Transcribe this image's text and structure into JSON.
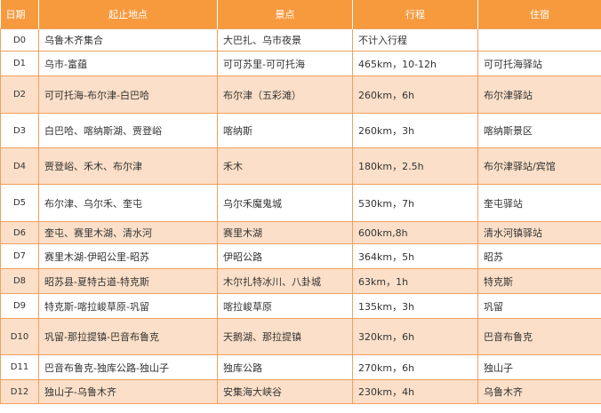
{
  "header": [
    "日期",
    "起止地点",
    "景点",
    "行程",
    "住宿"
  ],
  "rows": [
    {
      "day": "D0",
      "route": "乌鲁木齐集合",
      "sight": "大巴扎、乌市夜景",
      "distance": "不计入行程",
      "stay": ""
    },
    {
      "day": "D1",
      "route": "乌市-富蕴",
      "sight": "可可苏里-可可托海",
      "distance": "465km，10-12h",
      "stay": "可可托海驿站"
    },
    {
      "day": "D2",
      "route": "可可托海-布尔津-白巴哈",
      "sight": "布尔津（五彩滩）",
      "distance": "260km，6h",
      "stay": "布尔津驿站"
    },
    {
      "day": "D3",
      "route": "白巴哈、喀纳斯湖、贾登峪",
      "sight": "喀纳斯",
      "distance": "260km，3h",
      "stay": "喀纳斯景区"
    },
    {
      "day": "D4",
      "route": "贾登峪、禾木、布尔津",
      "sight": "禾木",
      "distance": "180km，2.5h",
      "stay": "布尔津驿站/宾馆"
    },
    {
      "day": "D5",
      "route": "布尔津、乌尔禾、奎屯",
      "sight": "乌尔禾魔鬼城",
      "distance": "530km，7h",
      "stay": "奎屯驿站"
    },
    {
      "day": "D6",
      "route": "奎屯、赛里木湖、清水河",
      "sight": "赛里木湖",
      "distance": "600km,8h",
      "stay": "清水河镇驿站"
    },
    {
      "day": "D7",
      "route": "赛里木湖-伊昭公里-昭苏",
      "sight": "伊昭公路",
      "distance": "364km，5h",
      "stay": "昭苏"
    },
    {
      "day": "D8",
      "route": "昭苏县-夏特古道-特克斯",
      "sight": "木尔扎特冰川、八卦城",
      "distance": "63km，1h",
      "stay": "特克斯"
    },
    {
      "day": "D9",
      "route": "特克斯-喀拉峻草原-巩留",
      "sight": "喀拉峻草原",
      "distance": "135km，3h",
      "stay": "巩留"
    },
    {
      "day": "D10",
      "route": "巩留-那拉提镇-巴音布鲁克",
      "sight": "天鹅湖、那拉提镇",
      "distance": "320km，6h",
      "stay": "巴音布鲁克"
    },
    {
      "day": "D11",
      "route": "巴音布鲁克-独库公路-独山子",
      "sight": "独库公路",
      "distance": "270km，6h",
      "stay": "独山子"
    },
    {
      "day": "D12",
      "route": "独山子-乌鲁木齐",
      "sight": "安集海大峡谷",
      "distance": "230km，4h",
      "stay": "乌鲁木齐"
    }
  ]
}
